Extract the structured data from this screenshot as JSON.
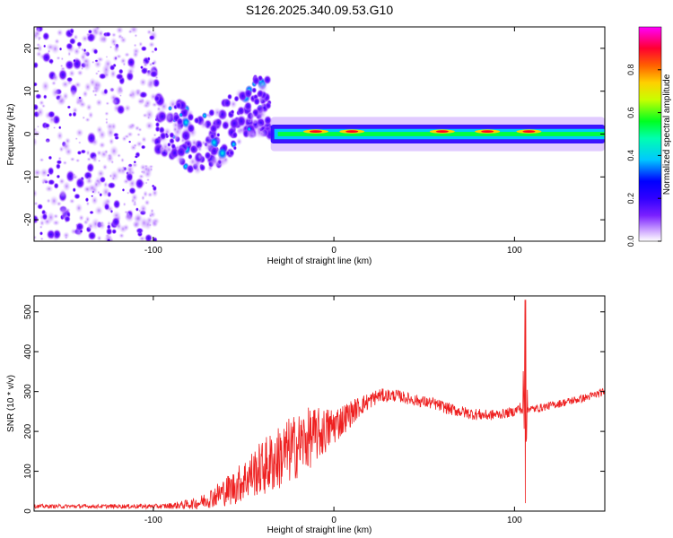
{
  "title": "S126.2025.340.09.53.G10",
  "chart_data": [
    {
      "type": "heatmap",
      "xlabel": "Height of straight line (km)",
      "ylabel": "Frequency (Hz)",
      "xlim": [
        -166,
        150
      ],
      "ylim": [
        -25,
        25
      ],
      "xticks": [
        -100,
        0,
        100
      ],
      "yticks": [
        -20,
        -10,
        0,
        10,
        20
      ],
      "colorbar": {
        "label": "Normalized spectral amplitude",
        "range": [
          0,
          1
        ],
        "ticks": [
          0.0,
          0.2,
          0.4,
          0.6,
          0.8
        ],
        "tick_labels": [
          "0.0",
          "0.2",
          "0.4",
          "0.6",
          "0.8"
        ],
        "colormap": [
          "#ffffff",
          "#b070ff",
          "#5a00ff",
          "#0000ff",
          "#00c8ff",
          "#00ff60",
          "#ffff00",
          "#ff8000",
          "#ff0000",
          "#ff00ff"
        ]
      },
      "regions": [
        {
          "name": "noise",
          "x": [
            -166,
            -98
          ],
          "freq_range": [
            -25,
            25
          ],
          "amplitude": 0.1
        },
        {
          "name": "rising-spread",
          "x": [
            -98,
            -35
          ],
          "freq_range": [
            -5,
            12
          ],
          "amplitude": 0.25
        },
        {
          "name": "tone",
          "x": [
            -35,
            150
          ],
          "freq_center": 0,
          "amplitude": 0.7,
          "peak_near_x": [
            -10,
            10,
            60,
            85,
            108
          ]
        }
      ]
    },
    {
      "type": "line",
      "xlabel": "Height of straight line (km)",
      "ylabel": "SNR (10 * v/v)",
      "xlim": [
        -166,
        150
      ],
      "ylim": [
        0,
        540
      ],
      "xticks": [
        -100,
        0,
        100
      ],
      "yticks": [
        0,
        100,
        200,
        300,
        400,
        500
      ],
      "color": "#ee2020",
      "series": [
        {
          "name": "SNR",
          "x": [
            -166,
            -150,
            -130,
            -110,
            -95,
            -85,
            -75,
            -65,
            -55,
            -45,
            -35,
            -25,
            -15,
            -5,
            5,
            15,
            25,
            35,
            45,
            55,
            65,
            75,
            85,
            95,
            100,
            103,
            106,
            108,
            110,
            120,
            130,
            140,
            150
          ],
          "values": [
            12,
            12,
            12,
            12,
            12,
            15,
            20,
            40,
            60,
            95,
            120,
            150,
            180,
            200,
            230,
            265,
            290,
            290,
            278,
            270,
            255,
            245,
            240,
            245,
            250,
            260,
            240,
            260,
            255,
            265,
            275,
            285,
            300
          ],
          "noise_amplitude": [
            5,
            5,
            5,
            6,
            6,
            10,
            15,
            30,
            45,
            60,
            80,
            85,
            80,
            60,
            40,
            25,
            18,
            15,
            15,
            15,
            15,
            15,
            14,
            12,
            12,
            14,
            14,
            12,
            10,
            10,
            10,
            10,
            10
          ]
        }
      ],
      "annotations": [
        {
          "x": 106,
          "value_max": 530,
          "value_min": 20,
          "label": "spike"
        }
      ]
    }
  ]
}
